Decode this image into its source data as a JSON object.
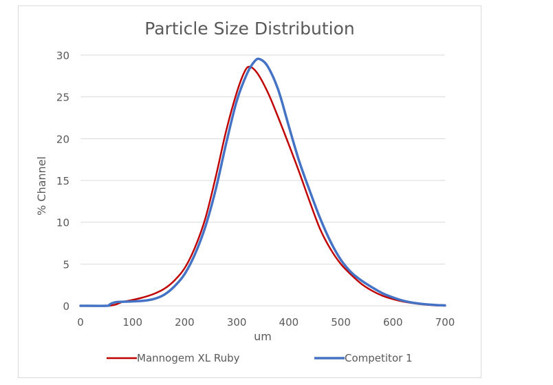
{
  "chart_data": {
    "type": "line",
    "title": "Particle Size Distribution",
    "xlabel": "um",
    "ylabel": "% Channel",
    "xlim": [
      0,
      700
    ],
    "ylim": [
      0,
      30
    ],
    "x_ticks": [
      0,
      100,
      200,
      300,
      400,
      500,
      600,
      700
    ],
    "y_ticks": [
      0,
      5,
      10,
      15,
      20,
      25,
      30
    ],
    "grid": "horizontal",
    "legend_position": "bottom",
    "series": [
      {
        "name": "Mannogem XL Ruby",
        "color": "#c00000",
        "points": [
          [
            0,
            0
          ],
          [
            50,
            0
          ],
          [
            60,
            0.05
          ],
          [
            70,
            0.2
          ],
          [
            80,
            0.45
          ],
          [
            100,
            0.7
          ],
          [
            120,
            1.0
          ],
          [
            140,
            1.4
          ],
          [
            160,
            2.0
          ],
          [
            180,
            3.0
          ],
          [
            200,
            4.5
          ],
          [
            220,
            7.0
          ],
          [
            240,
            10.5
          ],
          [
            260,
            15.5
          ],
          [
            280,
            21.0
          ],
          [
            300,
            25.5
          ],
          [
            315,
            28.0
          ],
          [
            325,
            28.6
          ],
          [
            340,
            27.8
          ],
          [
            360,
            25.5
          ],
          [
            380,
            22.5
          ],
          [
            400,
            19.3
          ],
          [
            420,
            16.0
          ],
          [
            440,
            12.5
          ],
          [
            460,
            9.2
          ],
          [
            480,
            6.8
          ],
          [
            500,
            5.0
          ],
          [
            520,
            3.7
          ],
          [
            540,
            2.6
          ],
          [
            560,
            1.8
          ],
          [
            580,
            1.2
          ],
          [
            600,
            0.8
          ],
          [
            620,
            0.5
          ],
          [
            640,
            0.3
          ],
          [
            660,
            0.15
          ],
          [
            680,
            0.05
          ],
          [
            700,
            0
          ]
        ]
      },
      {
        "name": "Competitor 1",
        "color": "#4472c4",
        "points": [
          [
            0,
            0
          ],
          [
            50,
            0
          ],
          [
            55,
            0.1
          ],
          [
            60,
            0.3
          ],
          [
            70,
            0.45
          ],
          [
            90,
            0.5
          ],
          [
            120,
            0.6
          ],
          [
            140,
            0.8
          ],
          [
            160,
            1.3
          ],
          [
            180,
            2.3
          ],
          [
            200,
            3.8
          ],
          [
            220,
            6.2
          ],
          [
            240,
            9.5
          ],
          [
            260,
            14.0
          ],
          [
            280,
            19.5
          ],
          [
            300,
            24.5
          ],
          [
            320,
            27.8
          ],
          [
            335,
            29.3
          ],
          [
            345,
            29.5
          ],
          [
            360,
            28.6
          ],
          [
            380,
            25.8
          ],
          [
            400,
            21.5
          ],
          [
            420,
            17.3
          ],
          [
            440,
            13.8
          ],
          [
            460,
            10.5
          ],
          [
            480,
            7.7
          ],
          [
            500,
            5.5
          ],
          [
            520,
            4.0
          ],
          [
            540,
            3.0
          ],
          [
            560,
            2.2
          ],
          [
            580,
            1.5
          ],
          [
            600,
            1.0
          ],
          [
            620,
            0.6
          ],
          [
            640,
            0.35
          ],
          [
            660,
            0.2
          ],
          [
            680,
            0.1
          ],
          [
            700,
            0.05
          ]
        ]
      }
    ]
  }
}
